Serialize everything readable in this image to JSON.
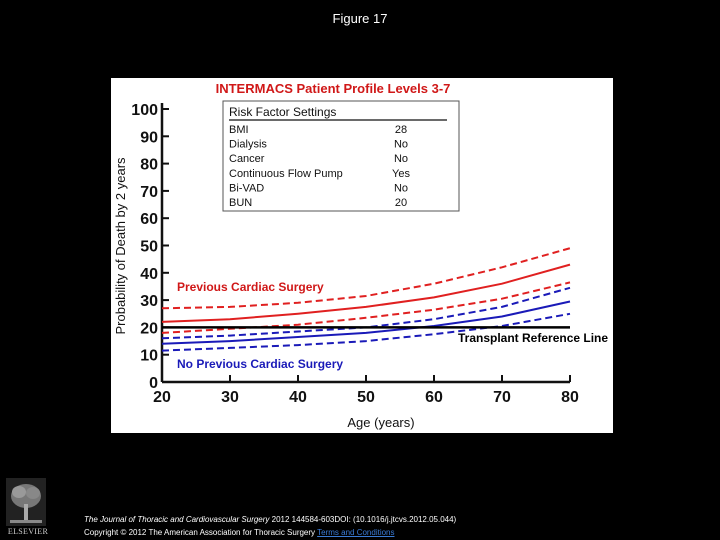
{
  "figure_title": "Figure 17",
  "footer": {
    "journal": "The Journal of Thoracic and Cardiovascular Surgery",
    "citation_details": " 2012 144584-603DOI: (10.1016/j.jtcvs.2012.05.044)",
    "copyright_prefix": "Copyright © 2012 The American Association for Thoracic Surgery",
    "terms_link": "Terms and Conditions",
    "publisher_logo": "ELSEVIER"
  },
  "chart_data": {
    "type": "line",
    "title": "INTERMACS Patient Profile Levels 3-7",
    "xlabel": "Age (years)",
    "ylabel": "Probability of Death by 2 years",
    "xlim": [
      20,
      80
    ],
    "ylim": [
      0,
      100
    ],
    "xticks": [
      "20",
      "30",
      "40",
      "50",
      "60",
      "70",
      "80"
    ],
    "yticks": [
      "0",
      "10",
      "20",
      "30",
      "40",
      "50",
      "60",
      "70",
      "80",
      "90",
      "100"
    ],
    "grid": false,
    "x": [
      20,
      30,
      40,
      50,
      60,
      70,
      80
    ],
    "series": [
      {
        "name": "Previous Cardiac Surgery",
        "color": "#e02020",
        "style": "solid",
        "values": [
          22,
          23,
          25,
          27.5,
          31,
          36,
          43
        ]
      },
      {
        "name": "Previous Cardiac Surgery upper CL",
        "color": "#e02020",
        "style": "dashed",
        "values": [
          27,
          27.5,
          29,
          31.5,
          36,
          42,
          49
        ]
      },
      {
        "name": "Previous Cardiac Surgery lower CL",
        "color": "#e02020",
        "style": "dashed",
        "values": [
          18,
          19.5,
          21,
          23.5,
          26.5,
          30.5,
          36.5
        ]
      },
      {
        "name": "No Previous Cardiac Surgery",
        "color": "#1a1ab8",
        "style": "solid",
        "values": [
          14,
          15,
          16.5,
          18,
          20.5,
          24,
          29.5
        ]
      },
      {
        "name": "No Previous Cardiac Surgery upper CL",
        "color": "#1a1ab8",
        "style": "dashed",
        "values": [
          16,
          17,
          18.5,
          20,
          23,
          27.5,
          34.5
        ]
      },
      {
        "name": "No Previous Cardiac Surgery lower CL",
        "color": "#1a1ab8",
        "style": "dashed",
        "values": [
          11.5,
          12.5,
          13.5,
          15,
          17.5,
          20.5,
          25
        ]
      },
      {
        "name": "Transplant Reference Line",
        "color": "#000000",
        "style": "solid",
        "values": [
          20,
          20,
          20,
          20,
          20,
          20,
          20
        ]
      }
    ],
    "annotations": {
      "previous": "Previous Cardiac Surgery",
      "no_previous": "No Previous Cardiac Surgery",
      "transplant": "Transplant Reference Line"
    },
    "risk_table": {
      "header": "Risk Factor Settings",
      "rows": [
        {
          "factor": "BMI",
          "value": "28"
        },
        {
          "factor": "Dialysis",
          "value": "No"
        },
        {
          "factor": "Cancer",
          "value": "No"
        },
        {
          "factor": "Continuous Flow Pump",
          "value": "Yes"
        },
        {
          "factor": "Bi-VAD",
          "value": "No"
        },
        {
          "factor": "BUN",
          "value": "20"
        }
      ]
    }
  }
}
